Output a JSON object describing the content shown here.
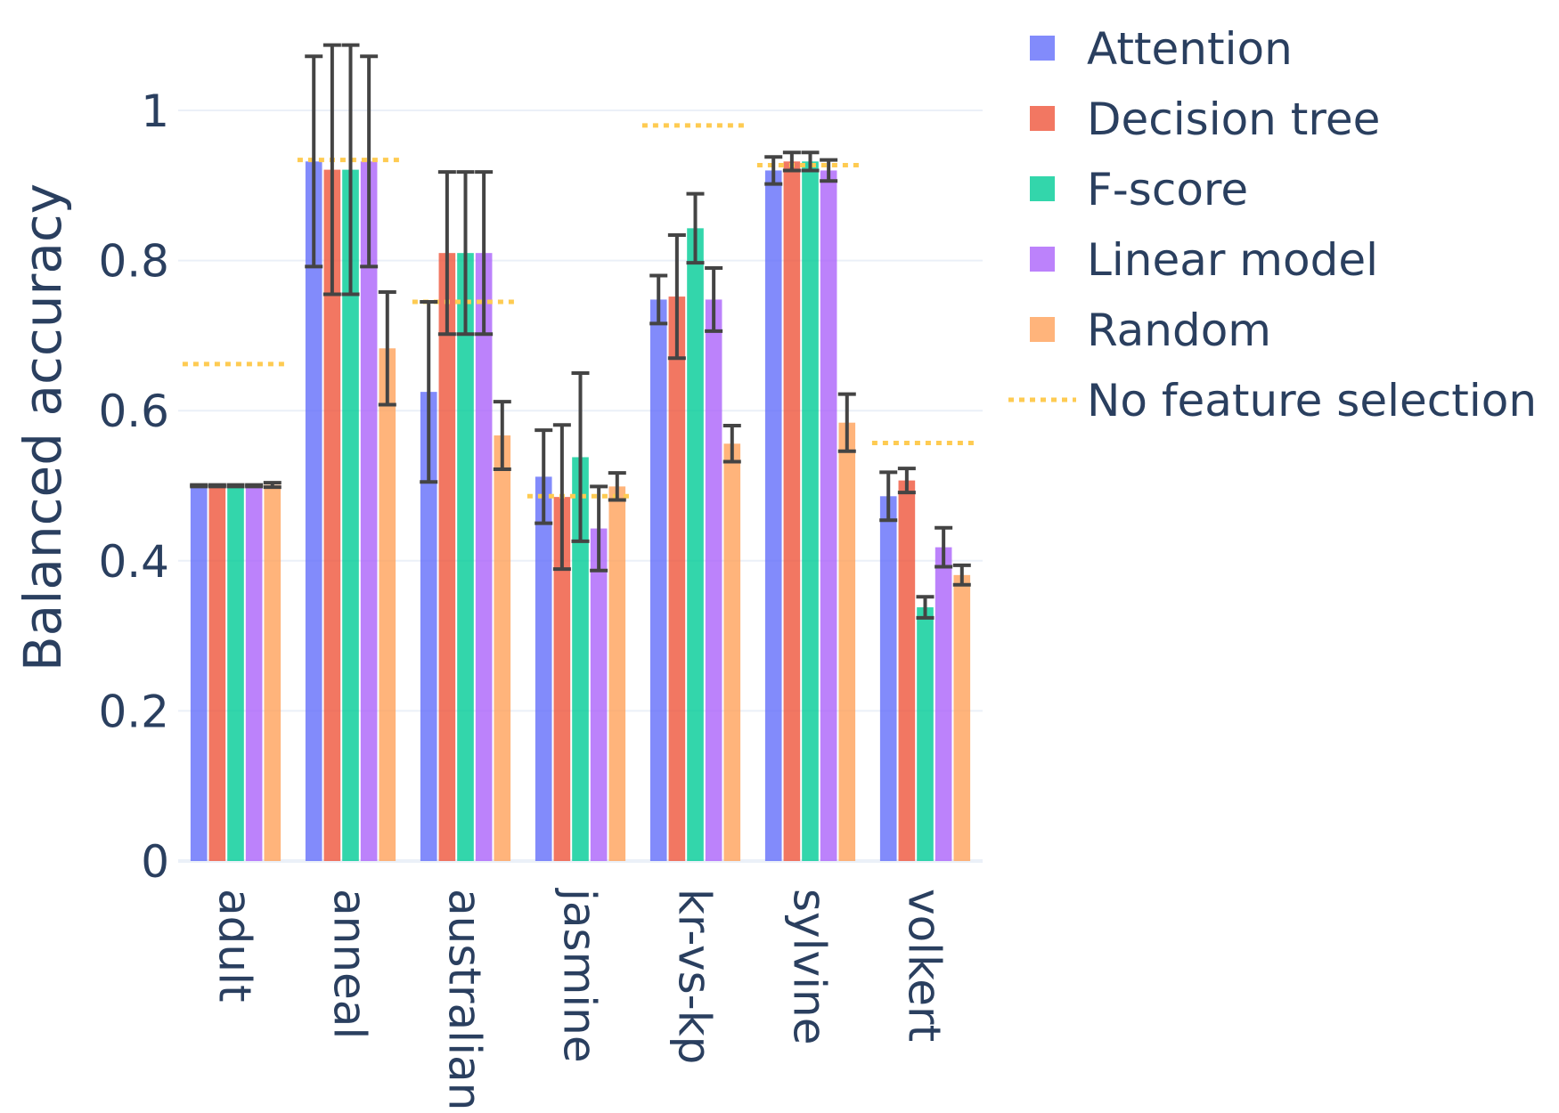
{
  "chart_data": {
    "type": "bar",
    "categories": [
      "adult",
      "anneal",
      "australian",
      "jasmine",
      "kr-vs-kp",
      "sylvine",
      "volkert"
    ],
    "ylabel": "Balanced accuracy",
    "xlabel": "",
    "ylim": [
      0,
      1.1
    ],
    "yticks": [
      0,
      0.2,
      0.4,
      0.6,
      0.8,
      1
    ],
    "ytick_labels": [
      "0",
      "0.2",
      "0.4",
      "0.6",
      "0.8",
      "1"
    ],
    "grid": true,
    "legend_position": "right",
    "series": [
      {
        "name": "Attention",
        "color": "#636efa",
        "values": [
          0.5,
          0.932,
          0.625,
          0.512,
          0.748,
          0.92,
          0.486
        ],
        "errors": [
          0.001,
          0.14,
          0.12,
          0.062,
          0.032,
          0.018,
          0.032
        ]
      },
      {
        "name": "Decision tree",
        "color": "#ef553b",
        "values": [
          0.5,
          0.921,
          0.81,
          0.485,
          0.752,
          0.932,
          0.507
        ],
        "errors": [
          0.001,
          0.166,
          0.108,
          0.096,
          0.082,
          0.012,
          0.016
        ]
      },
      {
        "name": "F-score",
        "color": "#00cc96",
        "values": [
          0.5,
          0.921,
          0.81,
          0.538,
          0.843,
          0.932,
          0.338
        ],
        "errors": [
          0.001,
          0.166,
          0.108,
          0.112,
          0.046,
          0.012,
          0.014
        ]
      },
      {
        "name": "Linear model",
        "color": "#ab63fa",
        "values": [
          0.5,
          0.932,
          0.81,
          0.443,
          0.748,
          0.92,
          0.418
        ],
        "errors": [
          0.001,
          0.14,
          0.108,
          0.056,
          0.042,
          0.014,
          0.026
        ]
      },
      {
        "name": "Random",
        "color": "#ffa15a",
        "values": [
          0.501,
          0.683,
          0.567,
          0.499,
          0.556,
          0.584,
          0.381
        ],
        "errors": [
          0.003,
          0.075,
          0.045,
          0.018,
          0.024,
          0.038,
          0.013
        ]
      }
    ],
    "baseline": {
      "name": "No feature selection",
      "color": "#fecb52",
      "values": [
        0.662,
        0.934,
        0.745,
        0.486,
        0.98,
        0.927,
        0.557
      ]
    }
  }
}
